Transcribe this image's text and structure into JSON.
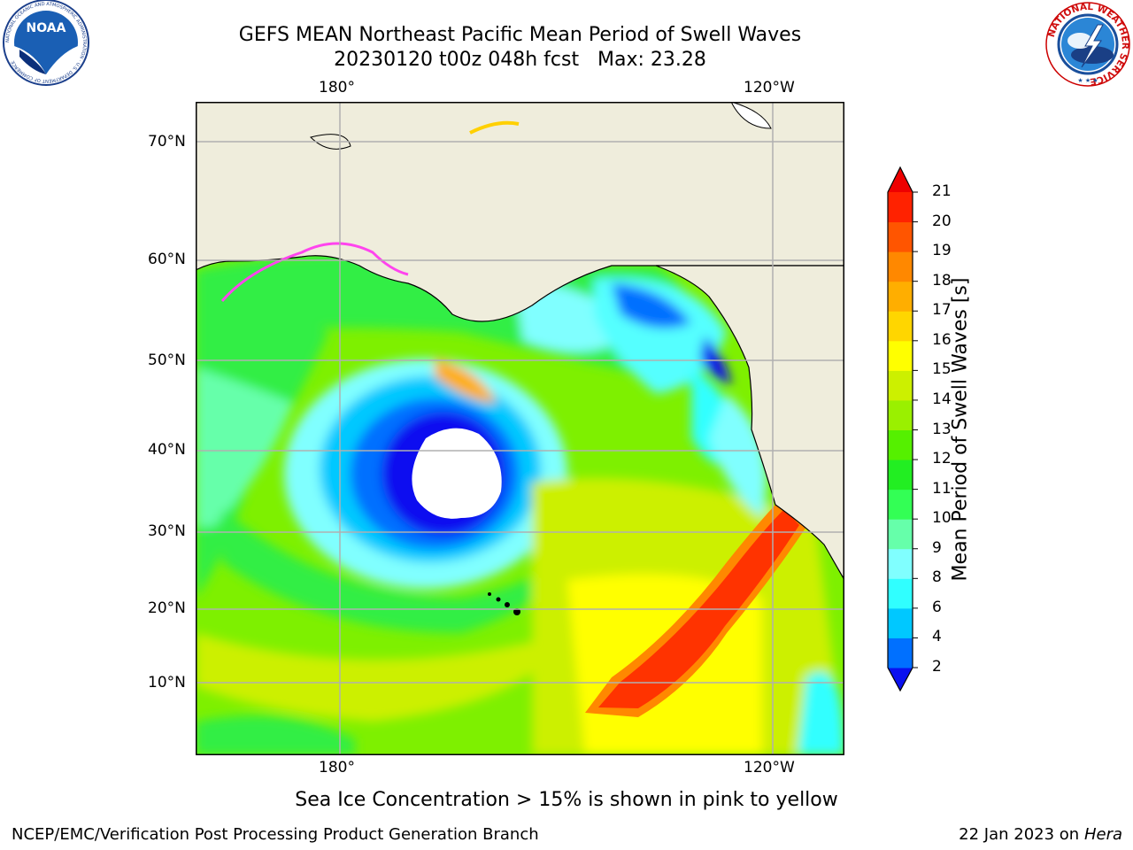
{
  "title": {
    "line1": "GEFS MEAN Northeast Pacific Mean Period of Swell Waves",
    "line2": "20230120 t00z 048h fcst   Max: 23.28"
  },
  "logos": {
    "left": {
      "text": "NOAA",
      "ring_text": "NATIONAL OCEANIC AND ATMOSPHERIC ADMINISTRATION · U.S. DEPARTMENT OF COMMERCE"
    },
    "right": {
      "ring_text": "NATIONAL WEATHER SERVICE"
    }
  },
  "map": {
    "top_lon_labels": [
      "180°",
      "120°W"
    ],
    "bottom_lon_labels": [
      "180°",
      "120°W"
    ],
    "lat_labels": [
      "70°N",
      "60°N",
      "50°N",
      "40°N",
      "30°N",
      "20°N",
      "10°N"
    ],
    "land_color": "#efeddc",
    "grid_color": "#b0b0b0"
  },
  "colorbar": {
    "label": "Mean Period of Swell Waves [s]",
    "ticks": [
      "2",
      "4",
      "6",
      "8",
      "9",
      "10",
      "11",
      "12",
      "13",
      "14",
      "15",
      "16",
      "17",
      "18",
      "19",
      "20",
      "21"
    ],
    "colors": [
      "#0a10f0",
      "#0070ff",
      "#00c8ff",
      "#30ffff",
      "#80ffff",
      "#66ffaa",
      "#33ff55",
      "#22ee22",
      "#55f000",
      "#9af000",
      "#ccf000",
      "#ffff00",
      "#ffd600",
      "#ffae00",
      "#ff8800",
      "#ff5500",
      "#ff2200",
      "#ee0000"
    ]
  },
  "note": "Sea Ice Concentration > 15% is shown in pink to yellow",
  "footer": {
    "left": "NCEP/EMC/Verification Post Processing Product Generation Branch",
    "right_prefix": "22 Jan 2023 on ",
    "right_italic": "Hera"
  }
}
